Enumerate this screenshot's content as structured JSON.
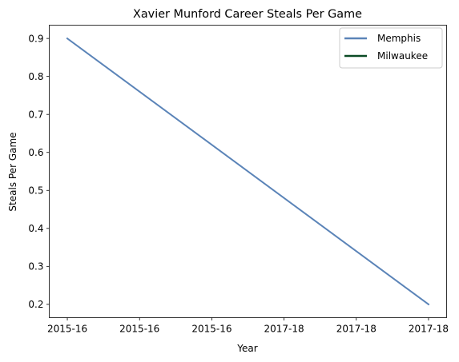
{
  "chart_data": {
    "type": "line",
    "title": "Xavier Munford Career Steals Per Game",
    "xlabel": "Year",
    "ylabel": "Steals Per Game",
    "x_ticks": [
      "2015-16",
      "2015-16",
      "2015-16",
      "2017-18",
      "2017-18",
      "2017-18"
    ],
    "x_range": [
      -0.05,
      1.05
    ],
    "ylim": [
      0.165,
      0.935
    ],
    "y_ticks": [
      0.2,
      0.3,
      0.4,
      0.5,
      0.6,
      0.7,
      0.8,
      0.9
    ],
    "grid": false,
    "legend_position": "top-right",
    "series": [
      {
        "name": "Memphis",
        "color": "#5b84b8",
        "points": [
          {
            "x": 0,
            "y": 0.9
          },
          {
            "x": 1,
            "y": 0.2
          }
        ]
      },
      {
        "name": "Milwaukee",
        "color": "#0a4a25",
        "points": []
      }
    ]
  }
}
